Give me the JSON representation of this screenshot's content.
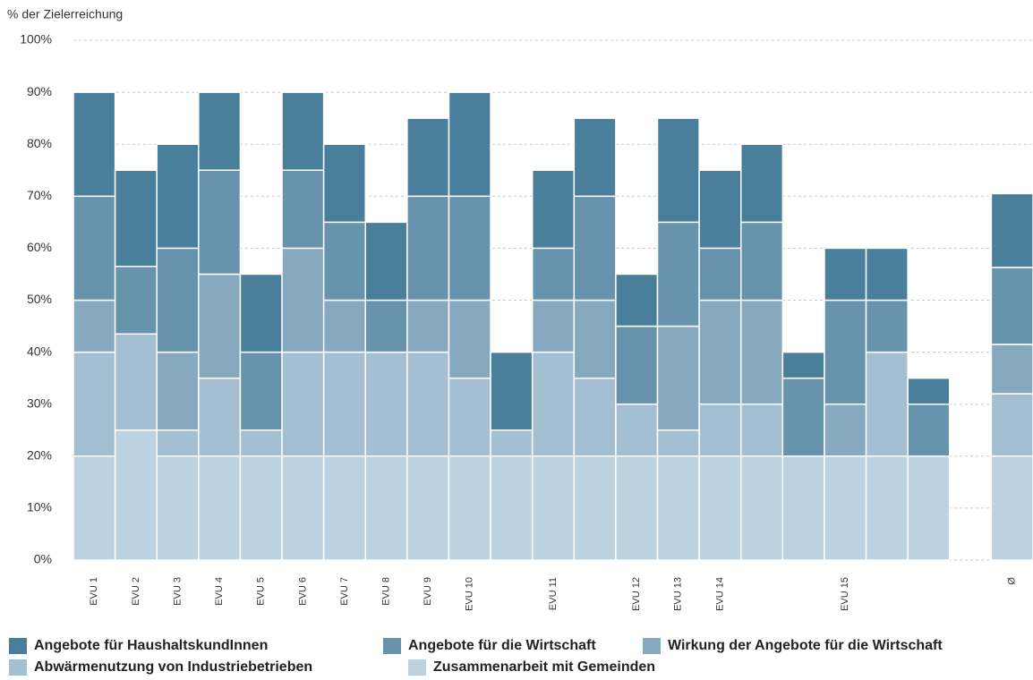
{
  "chart_data": {
    "type": "bar",
    "stacked": true,
    "y_label": "% der Zielerreichung",
    "categories": [
      "EVU 1",
      "EVU 2",
      "EVU 3",
      "EVU 4",
      "EVU 5",
      "EVU 6",
      "EVU 7",
      "EVU 8",
      "EVU 9",
      "EVU 10",
      null,
      "EVU 11",
      null,
      "EVU 12",
      "EVU 13",
      "EVU 14",
      null,
      null,
      "EVU 15",
      null,
      null,
      null,
      "Ø"
    ],
    "series": [
      {
        "name": "Angebote für HaushaltskundInnen",
        "color": "#4a7f9c",
        "values": [
          20,
          18.5,
          20,
          15,
          15,
          15,
          15,
          15,
          15,
          20,
          15,
          15,
          15,
          10,
          20,
          15,
          15,
          5,
          10,
          10,
          5,
          0,
          14.2
        ]
      },
      {
        "name": "Angebote für die Wirtschaft",
        "color": "#6893ad",
        "values": [
          20,
          13,
          20,
          20,
          15,
          15,
          15,
          10,
          20,
          20,
          0,
          10,
          20,
          15,
          20,
          10,
          15,
          15,
          20,
          10,
          10,
          0,
          14.8
        ]
      },
      {
        "name": "Wirkung der Angebote für die Wirtschaft",
        "color": "#86a9c0",
        "values": [
          10,
          0,
          15,
          20,
          0,
          20,
          10,
          0,
          10,
          15,
          0,
          10,
          15,
          0,
          20,
          20,
          20,
          0,
          10,
          0,
          0,
          0,
          9.5
        ]
      },
      {
        "name": "Abwärmenutzung von Industriebetrieben",
        "color": "#a3bfd1",
        "values": [
          20,
          18.5,
          5,
          15,
          5,
          20,
          20,
          20,
          20,
          15,
          5,
          20,
          15,
          10,
          5,
          10,
          10,
          0,
          0,
          20,
          0,
          0,
          12
        ]
      },
      {
        "name": "Zusammenarbeit mit Gemeinden",
        "color": "#bcd2e0",
        "values": [
          20,
          25,
          20,
          20,
          20,
          20,
          20,
          20,
          20,
          20,
          20,
          20,
          20,
          20,
          20,
          20,
          20,
          20,
          20,
          20,
          20,
          0,
          20
        ]
      }
    ],
    "ylim": [
      0,
      100
    ],
    "yticks": [
      {
        "value": 0,
        "label": "0%"
      },
      {
        "value": 10,
        "label": "10%"
      },
      {
        "value": 20,
        "label": "20%"
      },
      {
        "value": 30,
        "label": "30%"
      },
      {
        "value": 40,
        "label": "40%"
      },
      {
        "value": 50,
        "label": "50%"
      },
      {
        "value": 60,
        "label": "60%"
      },
      {
        "value": 70,
        "label": "70%"
      },
      {
        "value": 80,
        "label": "80%"
      },
      {
        "value": 90,
        "label": "90%"
      },
      {
        "value": 100,
        "label": "100%"
      }
    ],
    "grid": true,
    "legend": "bottom"
  }
}
